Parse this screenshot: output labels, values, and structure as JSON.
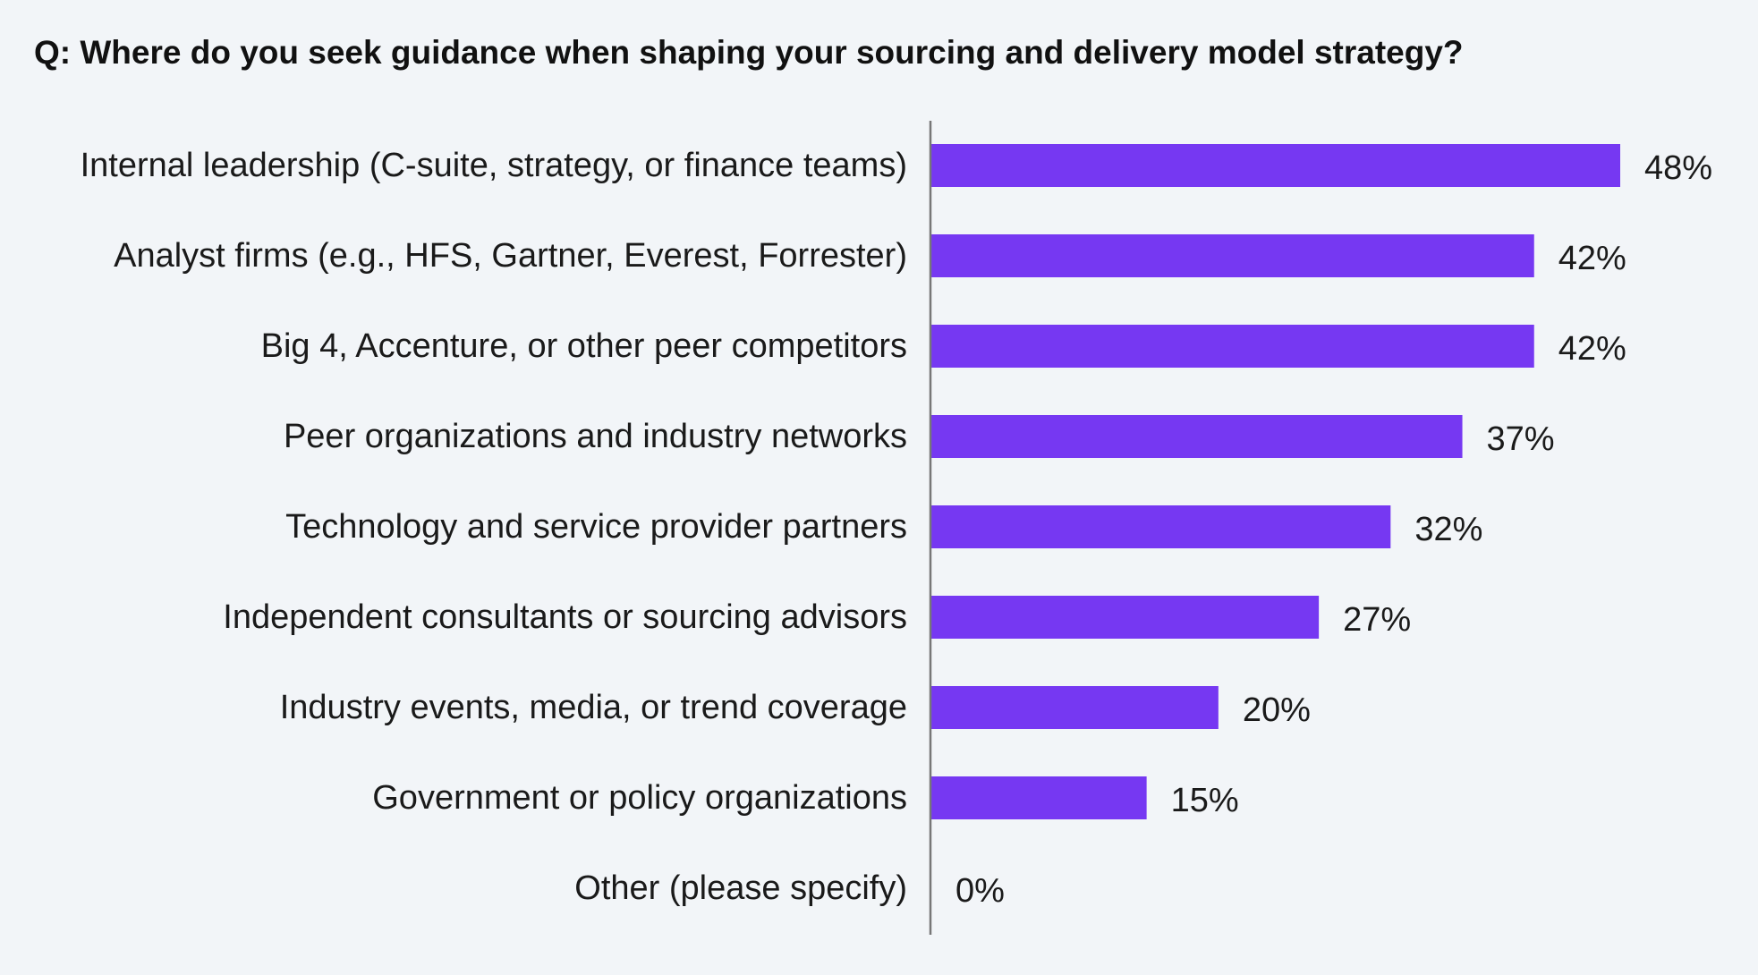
{
  "chart_data": {
    "type": "bar",
    "orientation": "horizontal",
    "title": "Q: Where do you seek guidance when shaping your sourcing and delivery model strategy?",
    "categories": [
      "Internal leadership (C-suite, strategy, or finance teams)",
      "Analyst firms (e.g., HFS, Gartner, Everest, Forrester)",
      "Big 4, Accenture, or other peer competitors",
      "Peer organizations and industry networks",
      "Technology and service provider partners",
      "Independent consultants or sourcing advisors",
      "Industry events, media, or trend coverage",
      "Government or policy organizations",
      "Other (please specify)"
    ],
    "values": [
      48,
      42,
      42,
      37,
      32,
      27,
      20,
      15,
      0
    ],
    "value_labels": [
      "48%",
      "42%",
      "42%",
      "37%",
      "32%",
      "27%",
      "20%",
      "15%",
      "0%"
    ],
    "xlim": [
      0,
      48
    ],
    "grid": false,
    "bar_color": "#7638f2",
    "axis_color": "#777777",
    "background": "#f2f5f8"
  }
}
